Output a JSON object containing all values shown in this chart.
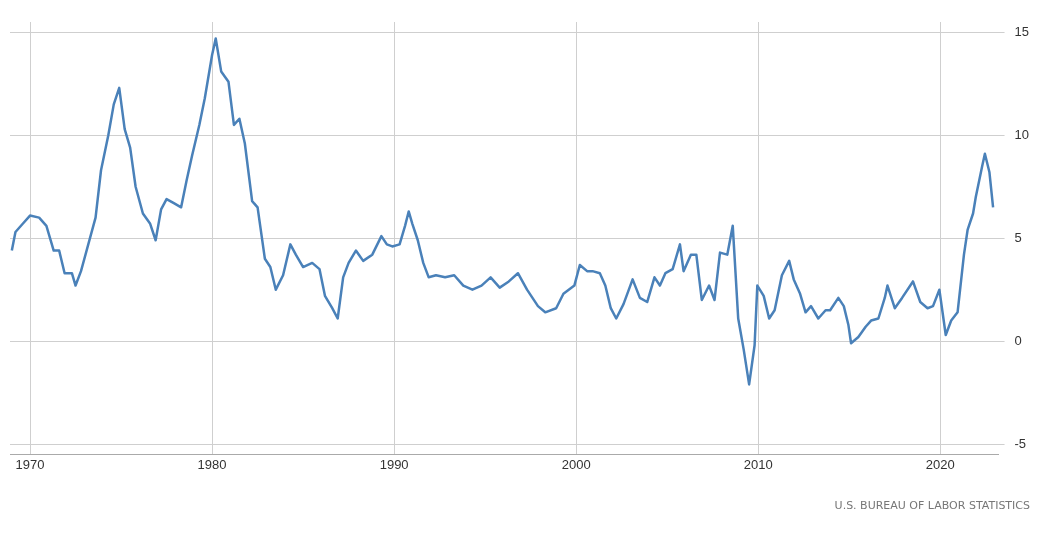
{
  "chart_data": {
    "type": "line",
    "color": "#4a81b9",
    "x": [
      1969.0,
      1969.2,
      1969.6,
      1970.0,
      1970.5,
      1970.9,
      1971.3,
      1971.6,
      1971.9,
      1972.3,
      1972.5,
      1972.8,
      1973.2,
      1973.6,
      1973.9,
      1974.3,
      1974.6,
      1974.9,
      1975.2,
      1975.5,
      1975.8,
      1976.2,
      1976.6,
      1976.9,
      1977.2,
      1977.5,
      1977.9,
      1978.3,
      1978.6,
      1978.9,
      1979.3,
      1979.6,
      1980.0,
      1980.2,
      1980.5,
      1980.9,
      1981.2,
      1981.5,
      1981.8,
      1982.2,
      1982.5,
      1982.9,
      1983.2,
      1983.5,
      1983.9,
      1984.3,
      1984.6,
      1985.0,
      1985.5,
      1985.9,
      1986.2,
      1986.6,
      1986.9,
      1987.2,
      1987.5,
      1987.9,
      1988.3,
      1988.8,
      1989.3,
      1989.6,
      1989.9,
      1990.3,
      1990.6,
      1990.8,
      1991.0,
      1991.3,
      1991.6,
      1991.9,
      1992.3,
      1992.8,
      1993.3,
      1993.8,
      1994.3,
      1994.8,
      1995.3,
      1995.8,
      1996.3,
      1996.8,
      1997.3,
      1997.9,
      1998.3,
      1998.9,
      1999.3,
      1999.9,
      2000.2,
      2000.6,
      2000.9,
      2001.3,
      2001.6,
      2001.9,
      2002.2,
      2002.6,
      2003.1,
      2003.5,
      2003.9,
      2004.3,
      2004.6,
      2004.9,
      2005.3,
      2005.7,
      2005.9,
      2006.3,
      2006.6,
      2006.9,
      2007.3,
      2007.6,
      2007.9,
      2008.3,
      2008.6,
      2008.9,
      2009.2,
      2009.5,
      2009.8,
      2009.95,
      2010.3,
      2010.6,
      2010.9,
      2011.3,
      2011.7,
      2011.95,
      2012.3,
      2012.6,
      2012.9,
      2013.3,
      2013.7,
      2013.95,
      2014.4,
      2014.7,
      2014.95,
      2015.1,
      2015.5,
      2015.9,
      2016.2,
      2016.6,
      2016.95,
      2017.1,
      2017.5,
      2017.9,
      2018.5,
      2018.9,
      2019.3,
      2019.6,
      2019.95,
      2020.3,
      2020.6,
      2020.95,
      2021.3,
      2021.5,
      2021.8,
      2021.95,
      2022.3,
      2022.45,
      2022.7,
      2022.9
    ],
    "values": [
      4.4,
      5.3,
      5.7,
      6.1,
      6.0,
      5.6,
      4.4,
      4.4,
      3.3,
      3.3,
      2.7,
      3.4,
      4.7,
      6.0,
      8.3,
      10.0,
      11.5,
      12.3,
      10.3,
      9.4,
      7.5,
      6.2,
      5.7,
      4.9,
      6.4,
      6.9,
      6.7,
      6.5,
      7.8,
      9.0,
      10.5,
      11.8,
      13.9,
      14.7,
      13.1,
      12.6,
      10.5,
      10.8,
      9.6,
      6.8,
      6.5,
      4.0,
      3.6,
      2.5,
      3.2,
      4.7,
      4.2,
      3.6,
      3.8,
      3.5,
      2.2,
      1.6,
      1.1,
      3.1,
      3.8,
      4.4,
      3.9,
      4.2,
      5.1,
      4.7,
      4.6,
      4.7,
      5.6,
      6.3,
      5.7,
      4.9,
      3.8,
      3.1,
      3.2,
      3.1,
      3.2,
      2.7,
      2.5,
      2.7,
      3.1,
      2.6,
      2.9,
      3.3,
      2.5,
      1.7,
      1.4,
      1.6,
      2.3,
      2.7,
      3.7,
      3.4,
      3.4,
      3.3,
      2.7,
      1.6,
      1.1,
      1.8,
      3.0,
      2.1,
      1.9,
      3.1,
      2.7,
      3.3,
      3.5,
      4.7,
      3.4,
      4.2,
      4.2,
      2.0,
      2.7,
      2.0,
      4.3,
      4.2,
      5.6,
      1.1,
      -0.4,
      -2.1,
      -0.2,
      2.7,
      2.2,
      1.1,
      1.5,
      3.2,
      3.9,
      3.0,
      2.3,
      1.4,
      1.7,
      1.1,
      1.5,
      1.5,
      2.1,
      1.7,
      0.8,
      -0.1,
      0.2,
      0.7,
      1.0,
      1.1,
      2.1,
      2.7,
      1.6,
      2.1,
      2.9,
      1.9,
      1.6,
      1.7,
      2.5,
      0.3,
      1.0,
      1.4,
      4.2,
      5.4,
      6.2,
      7.0,
      8.5,
      9.1,
      8.2,
      6.5
    ],
    "xlim": [
      1968.9,
      2023.2
    ],
    "xticks": [
      1970,
      1980,
      1990,
      2000,
      2010,
      2020
    ],
    "ylim": [
      -5.5,
      15.5
    ],
    "yticks": [
      -5,
      0,
      5,
      10,
      15
    ],
    "grid": true,
    "marker": "none",
    "line_style": "solid",
    "annotations": [
      "U.S. BUREAU OF LABOR STATISTICS"
    ]
  }
}
